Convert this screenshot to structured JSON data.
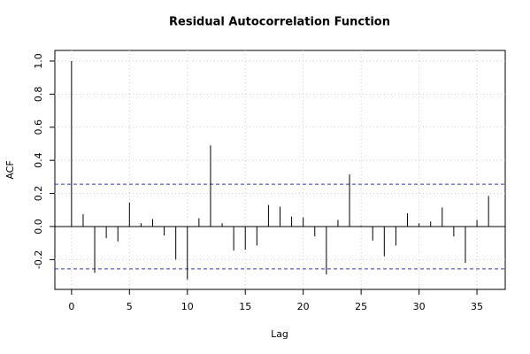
{
  "chart_data": {
    "type": "acf",
    "title": "Residual Autocorrelation Function",
    "x_label": "Lag",
    "y_label": "ACF",
    "x": [
      0,
      1,
      2,
      3,
      4,
      5,
      6,
      7,
      8,
      9,
      10,
      11,
      12,
      13,
      14,
      15,
      16,
      17,
      18,
      19,
      20,
      21,
      22,
      23,
      24,
      25,
      26,
      27,
      28,
      29,
      30,
      31,
      32,
      33,
      34,
      35,
      36
    ],
    "values": [
      1.0,
      0.075,
      -0.28,
      -0.07,
      -0.09,
      0.145,
      0.02,
      0.045,
      -0.055,
      -0.2,
      -0.32,
      0.05,
      0.49,
      0.02,
      -0.145,
      -0.14,
      -0.115,
      0.13,
      0.12,
      0.06,
      0.055,
      -0.06,
      -0.29,
      0.04,
      0.315,
      0.005,
      -0.085,
      -0.18,
      -0.115,
      0.08,
      0.02,
      0.03,
      0.115,
      -0.06,
      -0.22,
      0.04,
      0.185
    ],
    "color": "#000000",
    "conf_band": [
      0.256,
      -0.256
    ],
    "conf_color": "#3333cc",
    "xlim": [
      -1.44,
      37.44
    ],
    "xticks": [
      0,
      5,
      10,
      15,
      20,
      25,
      30,
      35
    ],
    "ylim": [
      -0.38,
      1.064
    ],
    "yticks": [
      -0.2,
      {
        "value": 0,
        "label": "0.0"
      },
      0.2,
      0.4,
      0.6,
      0.8,
      {
        "value": 1,
        "label": "1.0"
      }
    ],
    "grid": true
  }
}
